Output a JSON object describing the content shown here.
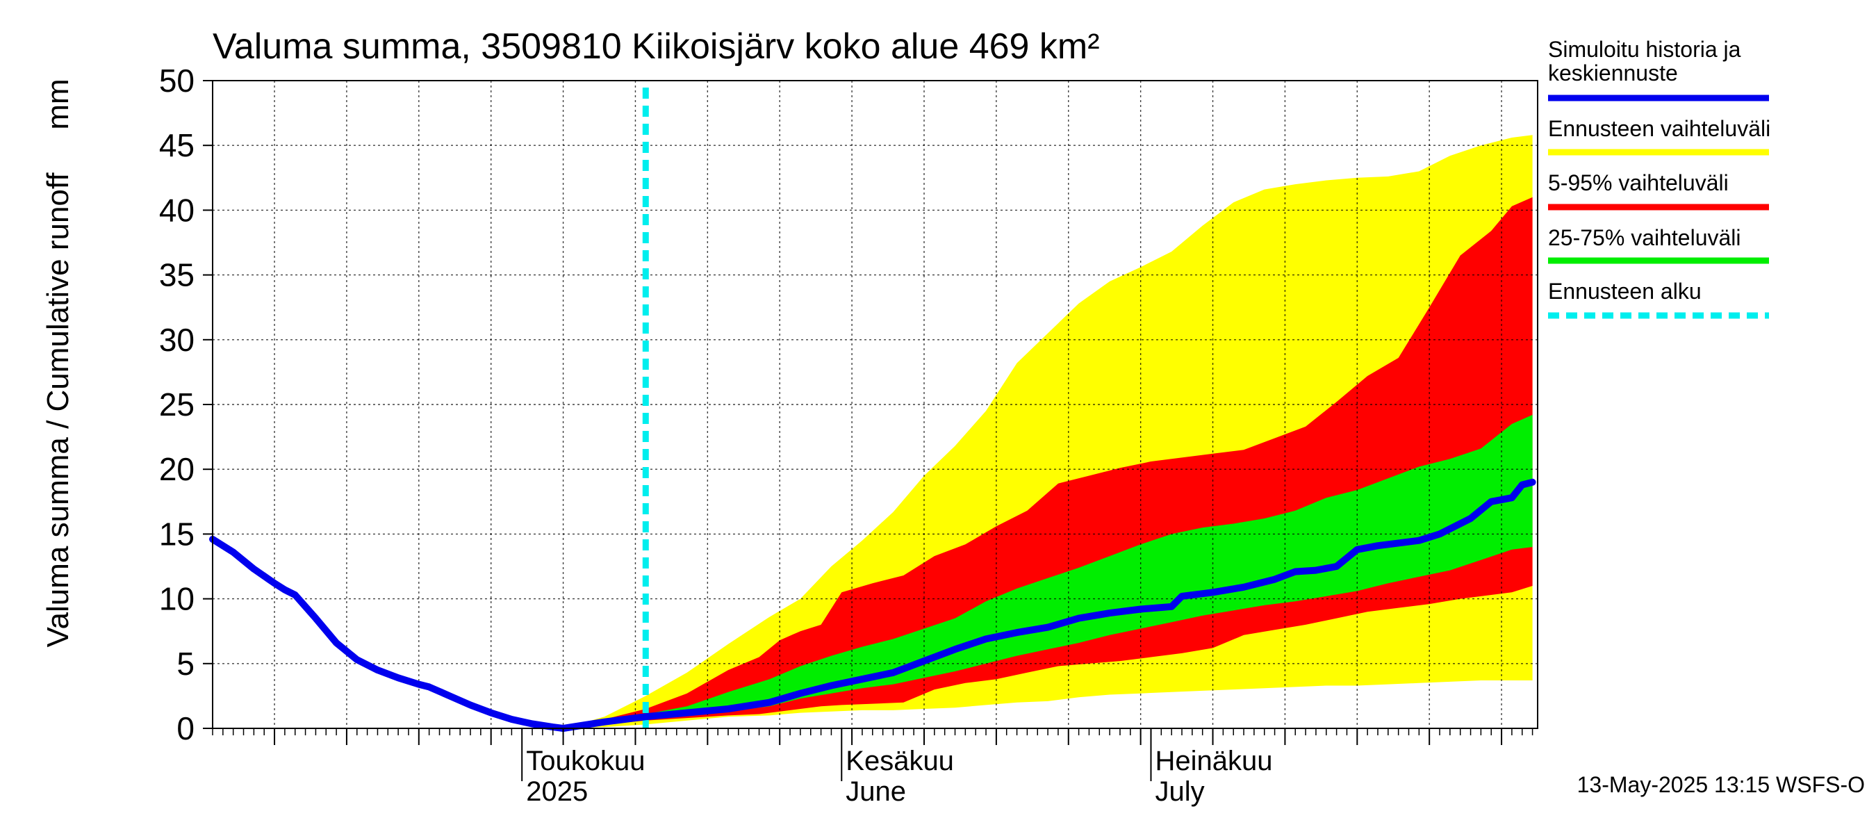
{
  "chart_data": {
    "type": "area",
    "title": "Valuma summa, 3509810 Kiikoisjärv koko alue 469 km²",
    "ylabel": "Valuma summa / Cumulative runoff",
    "yunit": "mm",
    "ylim": [
      0,
      50
    ],
    "yticks": [
      0,
      5,
      10,
      15,
      20,
      25,
      30,
      35,
      40,
      45,
      50
    ],
    "xlim": [
      "2025-04-01",
      "2025-07-31"
    ],
    "grid": true,
    "legend_position": "right",
    "month_labels": [
      {
        "date": "2025-05-01",
        "line1": "Toukokuu",
        "line2": "2025"
      },
      {
        "date": "2025-06-01",
        "line1": "Kesäkuu",
        "line2": "June"
      },
      {
        "date": "2025-07-01",
        "line1": "Heinäkuu",
        "line2": "July"
      }
    ],
    "forecast_start": "2025-05-13",
    "footer": "13-May-2025 13:15 WSFS-O",
    "colors": {
      "history": "#0000ee",
      "full_range": "#ffff00",
      "p5_95": "#ff0000",
      "p25_75": "#00ee00",
      "forecast_start": "#00eeee"
    },
    "legend": {
      "history": "Simuloitu historia ja keskiennuste",
      "full_range": "Ennusteen vaihteluväli",
      "p5_95": "5-95% vaihteluväli",
      "p25_75": "25-75% vaihteluväli",
      "forecast_start": "Ennusteen alku"
    },
    "series": {
      "history": [
        [
          "2025-04-01",
          14.6
        ],
        [
          "2025-04-03",
          13.6
        ],
        [
          "2025-04-05",
          12.3
        ],
        [
          "2025-04-07",
          11.2
        ],
        [
          "2025-04-08",
          10.7
        ],
        [
          "2025-04-09",
          10.3
        ],
        [
          "2025-04-11",
          8.5
        ],
        [
          "2025-04-13",
          6.6
        ],
        [
          "2025-04-15",
          5.3
        ],
        [
          "2025-04-17",
          4.5
        ],
        [
          "2025-04-19",
          3.9
        ],
        [
          "2025-04-21",
          3.4
        ],
        [
          "2025-04-22",
          3.2
        ],
        [
          "2025-04-24",
          2.5
        ],
        [
          "2025-04-26",
          1.8
        ],
        [
          "2025-04-28",
          1.2
        ],
        [
          "2025-04-30",
          0.7
        ],
        [
          "2025-05-02",
          0.35
        ],
        [
          "2025-05-04",
          0.1
        ],
        [
          "2025-05-05",
          0.0
        ]
      ],
      "median": [
        [
          "2025-05-05",
          0.0
        ],
        [
          "2025-05-09",
          0.5
        ],
        [
          "2025-05-13",
          0.9
        ],
        [
          "2025-05-17",
          1.2
        ],
        [
          "2025-05-21",
          1.5
        ],
        [
          "2025-05-25",
          2.0
        ],
        [
          "2025-05-28",
          2.7
        ],
        [
          "2025-05-31",
          3.3
        ],
        [
          "2025-06-03",
          3.8
        ],
        [
          "2025-06-06",
          4.3
        ],
        [
          "2025-06-09",
          5.2
        ],
        [
          "2025-06-12",
          6.1
        ],
        [
          "2025-06-15",
          6.9
        ],
        [
          "2025-06-18",
          7.4
        ],
        [
          "2025-06-21",
          7.8
        ],
        [
          "2025-06-24",
          8.5
        ],
        [
          "2025-06-27",
          8.9
        ],
        [
          "2025-06-30",
          9.2
        ],
        [
          "2025-07-03",
          9.4
        ],
        [
          "2025-07-04",
          10.2
        ],
        [
          "2025-07-07",
          10.5
        ],
        [
          "2025-07-10",
          10.9
        ],
        [
          "2025-07-13",
          11.5
        ],
        [
          "2025-07-15",
          12.1
        ],
        [
          "2025-07-17",
          12.2
        ],
        [
          "2025-07-19",
          12.5
        ],
        [
          "2025-07-21",
          13.8
        ],
        [
          "2025-07-23",
          14.1
        ],
        [
          "2025-07-25",
          14.3
        ],
        [
          "2025-07-27",
          14.5
        ],
        [
          "2025-07-29",
          15.0
        ],
        [
          "2025-08-01",
          16.2
        ],
        [
          "2025-08-03",
          17.5
        ],
        [
          "2025-08-05",
          17.8
        ],
        [
          "2025-08-06",
          18.8
        ],
        [
          "2025-08-07",
          19.0
        ]
      ],
      "full_range": [
        [
          "2025-05-05",
          0.0,
          0.0
        ],
        [
          "2025-05-09",
          0.1,
          0.9
        ],
        [
          "2025-05-13",
          0.3,
          2.5
        ],
        [
          "2025-05-17",
          0.6,
          4.3
        ],
        [
          "2025-05-21",
          0.9,
          6.5
        ],
        [
          "2025-05-25",
          1.0,
          8.6
        ],
        [
          "2025-05-28",
          1.2,
          10.0
        ],
        [
          "2025-05-31",
          1.3,
          12.5
        ],
        [
          "2025-06-03",
          1.4,
          14.5
        ],
        [
          "2025-06-06",
          1.4,
          16.7
        ],
        [
          "2025-06-09",
          1.5,
          19.5
        ],
        [
          "2025-06-12",
          1.6,
          21.8
        ],
        [
          "2025-06-15",
          1.8,
          24.5
        ],
        [
          "2025-06-18",
          2.0,
          28.2
        ],
        [
          "2025-06-21",
          2.1,
          30.5
        ],
        [
          "2025-06-24",
          2.4,
          32.8
        ],
        [
          "2025-06-27",
          2.6,
          34.5
        ],
        [
          "2025-06-30",
          2.7,
          35.6
        ],
        [
          "2025-07-03",
          2.8,
          36.8
        ],
        [
          "2025-07-06",
          2.9,
          38.8
        ],
        [
          "2025-07-09",
          3.0,
          40.6
        ],
        [
          "2025-07-12",
          3.1,
          41.6
        ],
        [
          "2025-07-15",
          3.2,
          42.0
        ],
        [
          "2025-07-18",
          3.3,
          42.3
        ],
        [
          "2025-07-21",
          3.3,
          42.5
        ],
        [
          "2025-07-24",
          3.4,
          42.6
        ],
        [
          "2025-07-27",
          3.5,
          43.0
        ],
        [
          "2025-07-30",
          3.6,
          44.2
        ],
        [
          "2025-08-02",
          3.7,
          45.0
        ],
        [
          "2025-08-05",
          3.7,
          45.6
        ],
        [
          "2025-08-07",
          3.7,
          45.8
        ]
      ],
      "p5_95": [
        [
          "2025-05-05",
          0.0,
          0.0
        ],
        [
          "2025-05-09",
          0.3,
          0.7
        ],
        [
          "2025-05-13",
          0.6,
          1.5
        ],
        [
          "2025-05-17",
          0.8,
          2.7
        ],
        [
          "2025-05-21",
          1.0,
          4.5
        ],
        [
          "2025-05-24",
          1.1,
          5.5
        ],
        [
          "2025-05-26",
          1.3,
          6.8
        ],
        [
          "2025-05-28",
          1.5,
          7.5
        ],
        [
          "2025-05-30",
          1.7,
          8.0
        ],
        [
          "2025-06-01",
          1.8,
          10.5
        ],
        [
          "2025-06-04",
          1.9,
          11.2
        ],
        [
          "2025-06-07",
          2.0,
          11.8
        ],
        [
          "2025-06-10",
          3.0,
          13.3
        ],
        [
          "2025-06-13",
          3.5,
          14.2
        ],
        [
          "2025-06-16",
          3.8,
          15.6
        ],
        [
          "2025-06-19",
          4.3,
          16.8
        ],
        [
          "2025-06-22",
          4.8,
          18.9
        ],
        [
          "2025-06-25",
          5.0,
          19.5
        ],
        [
          "2025-06-28",
          5.2,
          20.1
        ],
        [
          "2025-07-01",
          5.5,
          20.6
        ],
        [
          "2025-07-04",
          5.8,
          20.9
        ],
        [
          "2025-07-07",
          6.2,
          21.2
        ],
        [
          "2025-07-10",
          7.2,
          21.5
        ],
        [
          "2025-07-13",
          7.6,
          22.4
        ],
        [
          "2025-07-16",
          8.0,
          23.3
        ],
        [
          "2025-07-19",
          8.5,
          25.2
        ],
        [
          "2025-07-22",
          9.0,
          27.2
        ],
        [
          "2025-07-25",
          9.3,
          28.6
        ],
        [
          "2025-07-28",
          9.6,
          32.5
        ],
        [
          "2025-07-31",
          10.0,
          36.5
        ],
        [
          "2025-08-03",
          10.3,
          38.4
        ],
        [
          "2025-08-05",
          10.5,
          40.3
        ],
        [
          "2025-08-07",
          11.0,
          41.0
        ]
      ],
      "p25_75": [
        [
          "2025-05-05",
          0.0,
          0.0
        ],
        [
          "2025-05-09",
          0.4,
          0.6
        ],
        [
          "2025-05-13",
          0.8,
          1.1
        ],
        [
          "2025-05-17",
          1.1,
          1.7
        ],
        [
          "2025-05-21",
          1.3,
          2.8
        ],
        [
          "2025-05-25",
          1.7,
          3.8
        ],
        [
          "2025-05-28",
          2.3,
          4.8
        ],
        [
          "2025-05-31",
          2.7,
          5.6
        ],
        [
          "2025-06-03",
          3.1,
          6.3
        ],
        [
          "2025-06-06",
          3.4,
          6.9
        ],
        [
          "2025-06-09",
          3.9,
          7.7
        ],
        [
          "2025-06-12",
          4.4,
          8.5
        ],
        [
          "2025-06-15",
          5.0,
          9.8
        ],
        [
          "2025-06-18",
          5.6,
          10.8
        ],
        [
          "2025-06-21",
          6.1,
          11.6
        ],
        [
          "2025-06-24",
          6.6,
          12.4
        ],
        [
          "2025-06-27",
          7.2,
          13.3
        ],
        [
          "2025-06-30",
          7.7,
          14.2
        ],
        [
          "2025-07-03",
          8.2,
          15.0
        ],
        [
          "2025-07-06",
          8.7,
          15.5
        ],
        [
          "2025-07-09",
          9.1,
          15.8
        ],
        [
          "2025-07-12",
          9.5,
          16.2
        ],
        [
          "2025-07-15",
          9.8,
          16.8
        ],
        [
          "2025-07-18",
          10.2,
          17.8
        ],
        [
          "2025-07-21",
          10.6,
          18.4
        ],
        [
          "2025-07-24",
          11.2,
          19.3
        ],
        [
          "2025-07-27",
          11.7,
          20.2
        ],
        [
          "2025-07-30",
          12.2,
          20.8
        ],
        [
          "2025-08-02",
          13.0,
          21.6
        ],
        [
          "2025-08-05",
          13.8,
          23.5
        ],
        [
          "2025-08-07",
          14.0,
          24.2
        ]
      ]
    }
  }
}
